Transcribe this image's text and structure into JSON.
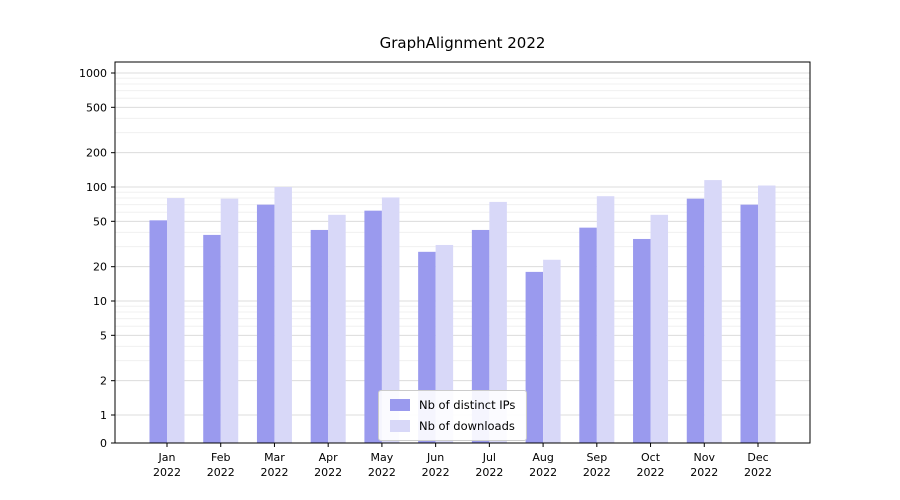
{
  "chart_data": {
    "type": "bar",
    "title": "GraphAlignment 2022",
    "categories": [
      "Jan",
      "Feb",
      "Mar",
      "Apr",
      "May",
      "Jun",
      "Jul",
      "Aug",
      "Sep",
      "Oct",
      "Nov",
      "Dec"
    ],
    "year_label": "2022",
    "series": [
      {
        "name": "Nb of distinct IPs",
        "color": "#9a9aee",
        "values": [
          51,
          38,
          70,
          42,
          62,
          27,
          42,
          18,
          44,
          35,
          79,
          70
        ]
      },
      {
        "name": "Nb of downloads",
        "color": "#d8d8f8",
        "values": [
          80,
          79,
          100,
          57,
          81,
          31,
          74,
          23,
          83,
          57,
          115,
          103
        ]
      }
    ],
    "yticks": [
      0,
      1,
      2,
      5,
      10,
      20,
      50,
      100,
      200,
      500,
      1000
    ],
    "yscale": "symlog",
    "ylim": [
      0,
      1100
    ],
    "grid": "horizontal",
    "legend_position": "lower center"
  }
}
